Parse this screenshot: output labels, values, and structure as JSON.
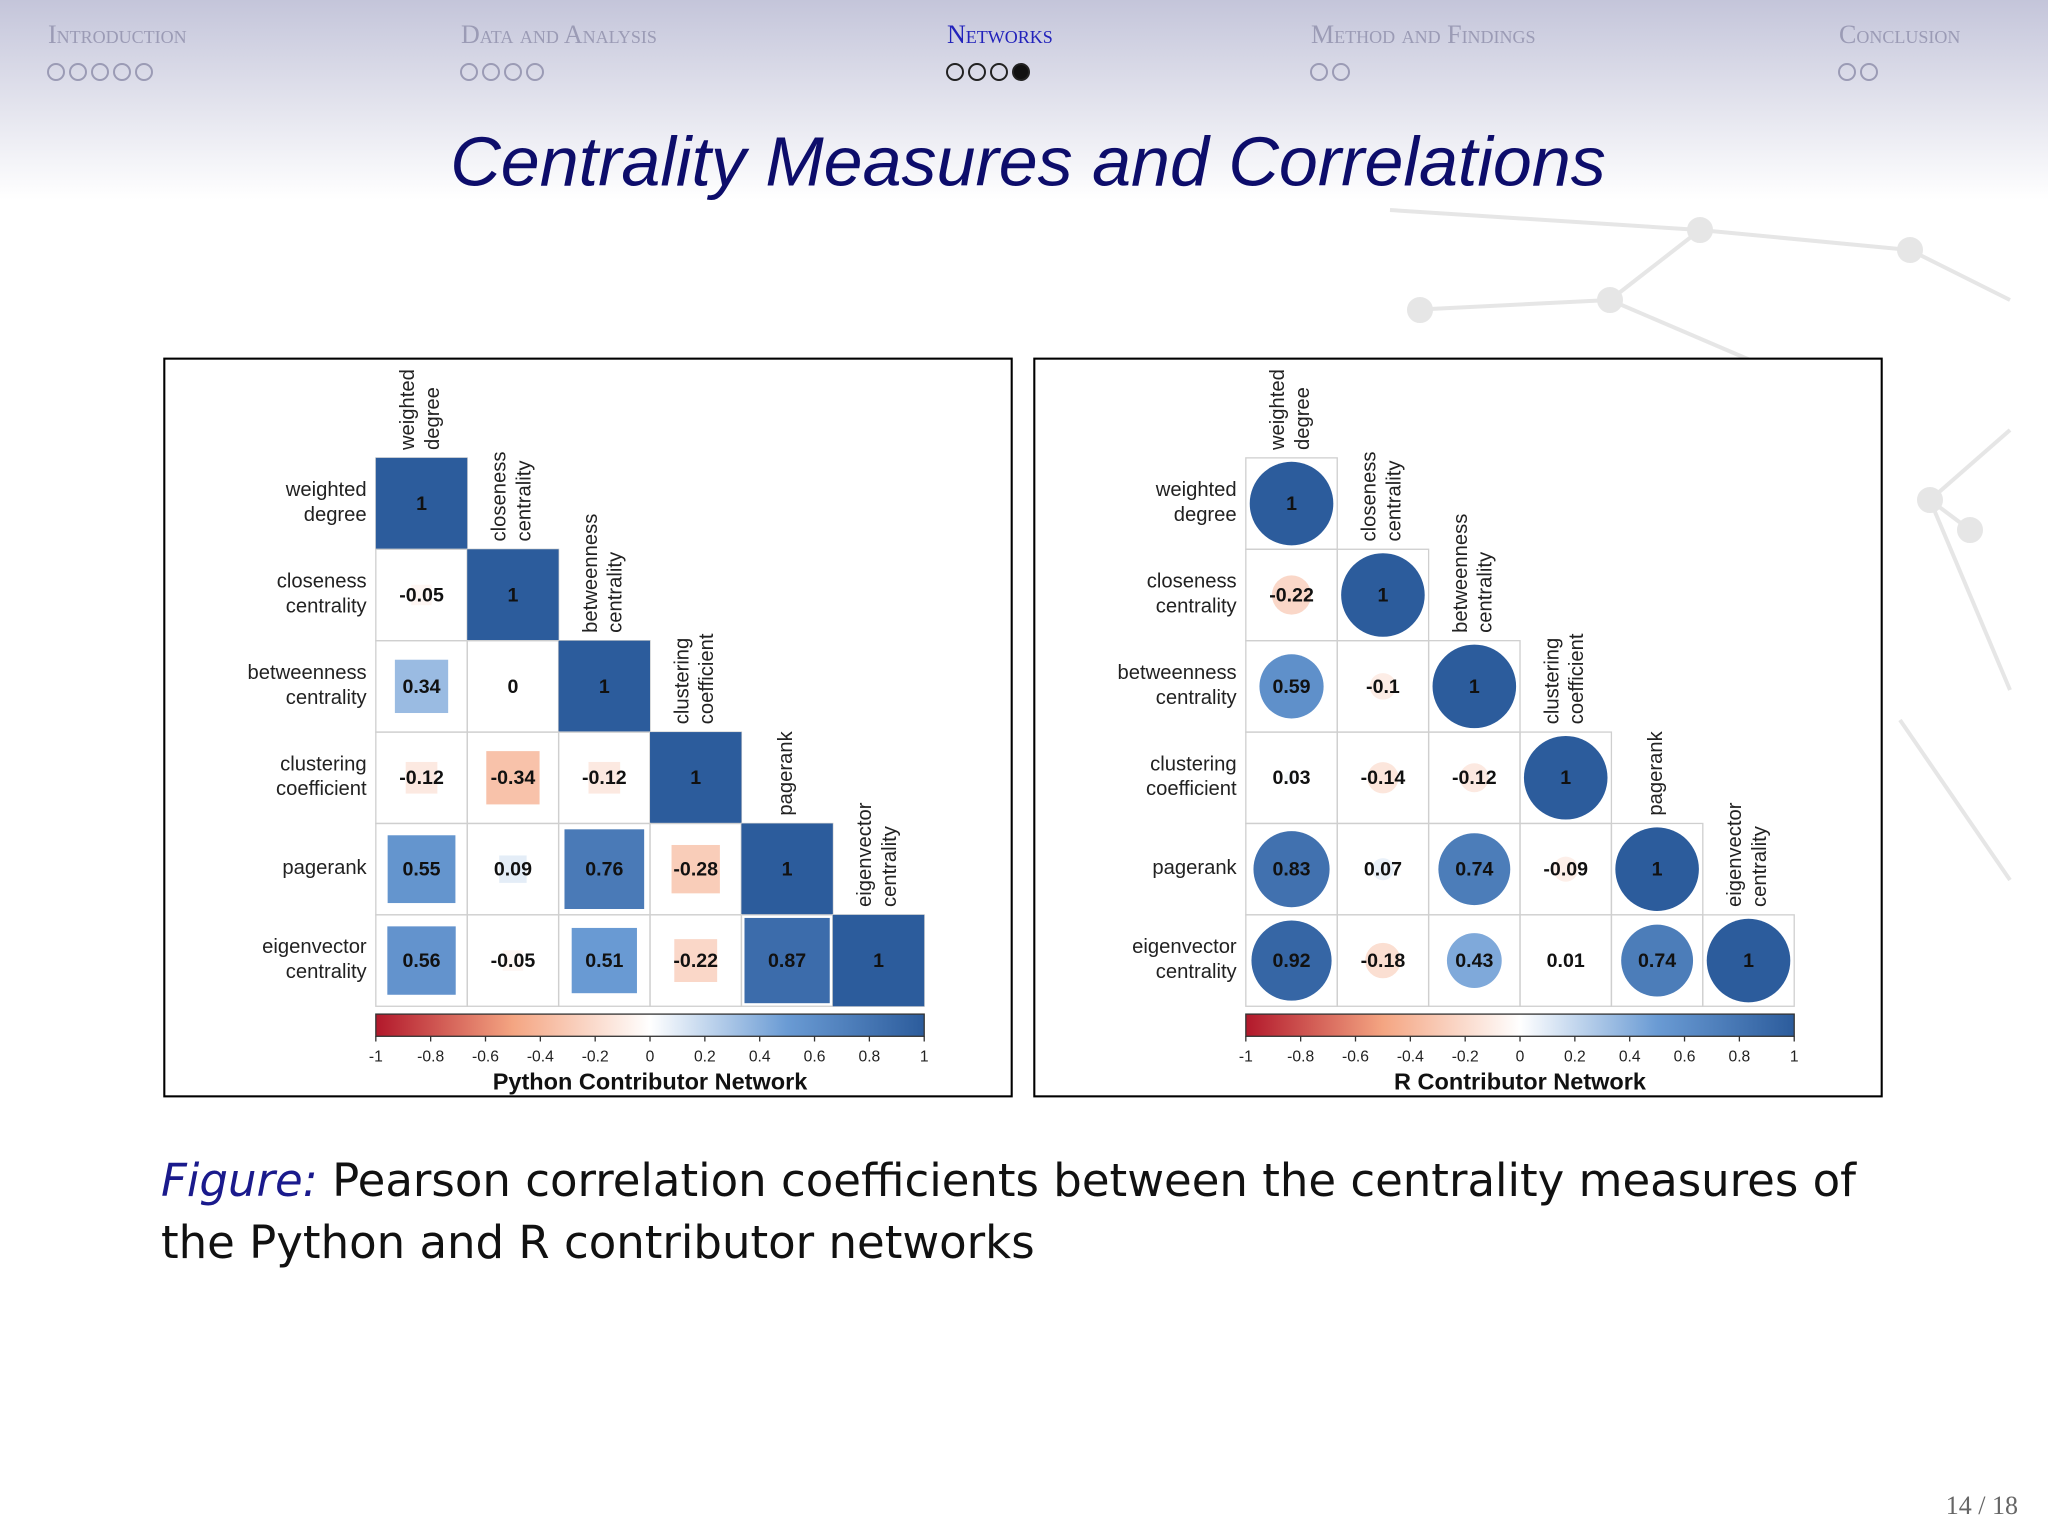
{
  "nav": {
    "sections": [
      {
        "title": "Introduction",
        "frames": 5
      },
      {
        "title": "Data and Analysis",
        "frames": 4
      },
      {
        "title": "Networks",
        "frames": 4
      },
      {
        "title": "Method and Findings",
        "frames": 2
      },
      {
        "title": "Conclusion",
        "frames": 2
      }
    ],
    "current_section": 2,
    "current_frame": 4
  },
  "title": "Centrality Measures and Correlations",
  "caption": {
    "label": "Figure:",
    "text": "Pearson correlation coefficients between the centrality measures of the Python and R contributor networks"
  },
  "page_number": "14 / 18",
  "chart_data": [
    {
      "type": "correlation_matrix",
      "shape": "square",
      "variables": [
        "weighted degree",
        "closeness centrality",
        "betweenness centrality",
        "clustering coefficient",
        "pagerank",
        "eigenvector centrality"
      ],
      "values": [
        [
          1
        ],
        [
          -0.05,
          1
        ],
        [
          0.34,
          0,
          1
        ],
        [
          -0.12,
          -0.34,
          -0.12,
          1
        ],
        [
          0.55,
          0.09,
          0.76,
          -0.28,
          1
        ],
        [
          0.56,
          -0.05,
          0.51,
          -0.22,
          0.87,
          1
        ]
      ],
      "colors": [
        "#b2182b",
        "#f4a582",
        "#ffffff",
        "#6a9bd4",
        "#2c5c9c"
      ],
      "colorbar_lim": [
        -1,
        1
      ],
      "colorbar_ticks": [
        -1,
        -0.8,
        -0.6,
        -0.4,
        -0.2,
        0,
        0.2,
        0.4,
        0.6,
        0.8,
        1
      ],
      "xlabel": "Python Contributor Network"
    },
    {
      "type": "correlation_matrix",
      "shape": "circle",
      "variables": [
        "weighted degree",
        "closeness centrality",
        "betweenness centrality",
        "clustering coefficient",
        "pagerank",
        "eigenvector centrality"
      ],
      "values": [
        [
          1
        ],
        [
          -0.22,
          1
        ],
        [
          0.59,
          -0.1,
          1
        ],
        [
          0.03,
          -0.14,
          -0.12,
          1
        ],
        [
          0.83,
          0.07,
          0.74,
          -0.09,
          1
        ],
        [
          0.92,
          -0.18,
          0.43,
          0.01,
          0.74,
          1
        ]
      ],
      "colors": [
        "#b2182b",
        "#f4a582",
        "#ffffff",
        "#6a9bd4",
        "#2c5c9c"
      ],
      "colorbar_lim": [
        -1,
        1
      ],
      "colorbar_ticks": [
        -1,
        -0.8,
        -0.6,
        -0.4,
        -0.2,
        0,
        0.2,
        0.4,
        0.6,
        0.8,
        1
      ],
      "xlabel": "R Contributor Network"
    }
  ]
}
